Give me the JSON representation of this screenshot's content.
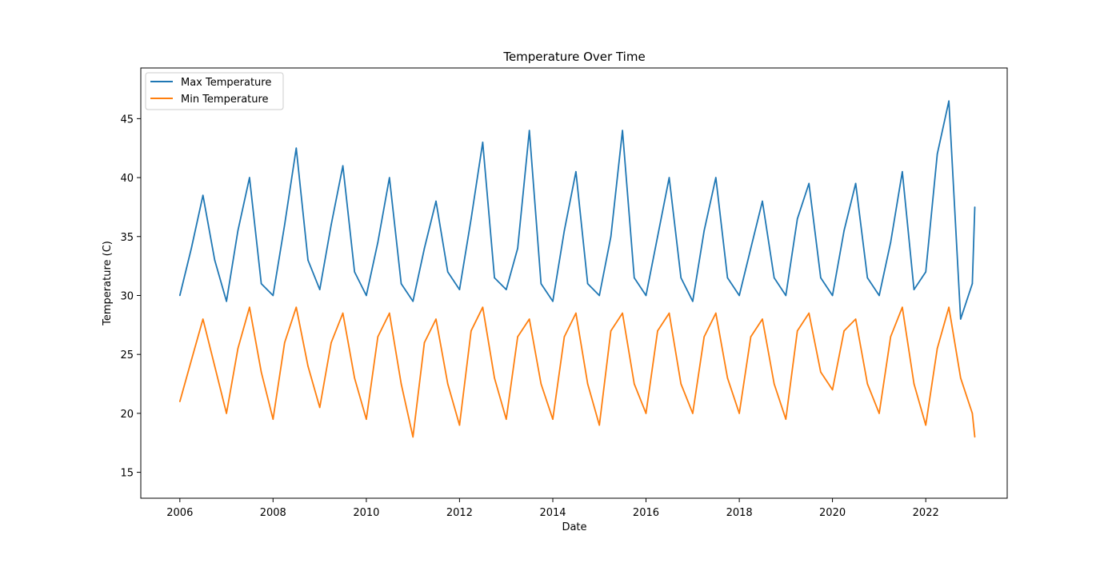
{
  "chart_data": {
    "type": "line",
    "title": "Temperature Over Time",
    "xlabel": "Date",
    "ylabel": "Temperature (C)",
    "x_type": "date",
    "xlim": [
      "2005-03-01",
      "2023-10-01"
    ],
    "ylim": [
      12.8,
      49.3
    ],
    "x_ticks": [
      "2006",
      "2008",
      "2010",
      "2012",
      "2014",
      "2016",
      "2018",
      "2020",
      "2022"
    ],
    "y_ticks": [
      15,
      20,
      25,
      30,
      35,
      40,
      45
    ],
    "grid": false,
    "legend_position": "upper left",
    "series": [
      {
        "name": "Max Temperature",
        "color": "#1f77b4",
        "x": [
          "2006-01-01",
          "2006-04-01",
          "2006-07-01",
          "2006-10-01",
          "2007-01-01",
          "2007-04-01",
          "2007-07-01",
          "2007-10-01",
          "2008-01-01",
          "2008-04-01",
          "2008-07-01",
          "2008-10-01",
          "2009-01-01",
          "2009-04-01",
          "2009-07-01",
          "2009-10-01",
          "2010-01-01",
          "2010-04-01",
          "2010-07-01",
          "2010-10-01",
          "2011-01-01",
          "2011-04-01",
          "2011-07-01",
          "2011-10-01",
          "2012-01-01",
          "2012-04-01",
          "2012-07-01",
          "2012-10-01",
          "2013-01-01",
          "2013-04-01",
          "2013-07-01",
          "2013-10-01",
          "2014-01-01",
          "2014-04-01",
          "2014-07-01",
          "2014-10-01",
          "2015-01-01",
          "2015-04-01",
          "2015-07-01",
          "2015-10-01",
          "2016-01-01",
          "2016-04-01",
          "2016-07-01",
          "2016-10-01",
          "2017-01-01",
          "2017-04-01",
          "2017-07-01",
          "2017-10-01",
          "2018-01-01",
          "2018-04-01",
          "2018-07-01",
          "2018-10-01",
          "2019-01-01",
          "2019-04-01",
          "2019-07-01",
          "2019-10-01",
          "2020-01-01",
          "2020-04-01",
          "2020-07-01",
          "2020-10-01",
          "2021-01-01",
          "2021-04-01",
          "2021-07-01",
          "2021-10-01",
          "2022-01-01",
          "2022-04-01",
          "2022-07-01",
          "2022-10-01",
          "2023-01-01",
          "2023-01-20"
        ],
        "values": [
          30,
          34,
          38.5,
          33,
          29.5,
          35.5,
          40,
          31,
          30,
          36,
          42.5,
          33,
          30.5,
          36,
          41,
          32,
          30,
          34.5,
          40,
          31,
          29.5,
          34,
          38,
          32,
          30.5,
          36.5,
          43,
          31.5,
          30.5,
          34,
          44,
          31,
          29.5,
          35.5,
          40.5,
          31,
          30,
          35,
          44,
          31.5,
          30,
          35,
          40,
          31.5,
          29.5,
          35.5,
          40,
          31.5,
          30,
          34,
          38,
          31.5,
          30,
          36.5,
          39.5,
          31.5,
          30,
          35.5,
          39.5,
          31.5,
          30,
          34.5,
          40.5,
          30.5,
          32,
          42,
          46.5,
          28,
          31,
          37.5
        ]
      },
      {
        "name": "Min Temperature",
        "color": "#ff7f0e",
        "x": [
          "2006-01-01",
          "2006-04-01",
          "2006-07-01",
          "2006-10-01",
          "2007-01-01",
          "2007-04-01",
          "2007-07-01",
          "2007-10-01",
          "2008-01-01",
          "2008-04-01",
          "2008-07-01",
          "2008-10-01",
          "2009-01-01",
          "2009-04-01",
          "2009-07-01",
          "2009-10-01",
          "2010-01-01",
          "2010-04-01",
          "2010-07-01",
          "2010-10-01",
          "2011-01-01",
          "2011-04-01",
          "2011-07-01",
          "2011-10-01",
          "2012-01-01",
          "2012-04-01",
          "2012-07-01",
          "2012-10-01",
          "2013-01-01",
          "2013-04-01",
          "2013-07-01",
          "2013-10-01",
          "2014-01-01",
          "2014-04-01",
          "2014-07-01",
          "2014-10-01",
          "2015-01-01",
          "2015-04-01",
          "2015-07-01",
          "2015-10-01",
          "2016-01-01",
          "2016-04-01",
          "2016-07-01",
          "2016-10-01",
          "2017-01-01",
          "2017-04-01",
          "2017-07-01",
          "2017-10-01",
          "2018-01-01",
          "2018-04-01",
          "2018-07-01",
          "2018-10-01",
          "2019-01-01",
          "2019-04-01",
          "2019-07-01",
          "2019-10-01",
          "2020-01-01",
          "2020-04-01",
          "2020-07-01",
          "2020-10-01",
          "2021-01-01",
          "2021-04-01",
          "2021-07-01",
          "2021-10-01",
          "2022-01-01",
          "2022-04-01",
          "2022-07-01",
          "2022-10-01",
          "2023-01-01",
          "2023-01-20"
        ],
        "values": [
          21,
          24.5,
          28,
          24,
          20,
          25.5,
          29,
          23.5,
          19.5,
          26,
          29,
          24,
          20.5,
          26,
          28.5,
          23,
          19.5,
          26.5,
          28.5,
          22.5,
          18,
          26,
          28,
          22.5,
          19,
          27,
          29,
          23,
          19.5,
          26.5,
          28,
          22.5,
          19.5,
          26.5,
          28.5,
          22.5,
          19,
          27,
          28.5,
          22.5,
          20,
          27,
          28.5,
          22.5,
          20,
          26.5,
          28.5,
          23,
          20,
          26.5,
          28,
          22.5,
          19.5,
          27,
          28.5,
          23.5,
          22,
          27,
          28,
          22.5,
          20,
          26.5,
          29,
          22.5,
          19,
          25.5,
          29,
          23,
          20,
          18
        ]
      }
    ]
  }
}
